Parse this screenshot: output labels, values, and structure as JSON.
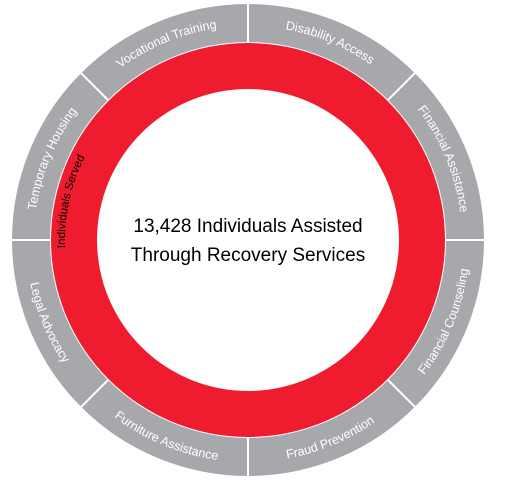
{
  "colors": {
    "outer_segment": "#a7a8ab",
    "segment_border": "#ffffff",
    "segment_text": "#ffffff",
    "ring": "#ee1c2e",
    "center": "#ffffff",
    "center_text": "#000000",
    "ring_text": "#000000"
  },
  "center": {
    "line1": "13,428 Individuals Assisted",
    "line2": "Through Recovery Services"
  },
  "ring": {
    "label": "Individuals Served"
  },
  "segments": [
    {
      "id": "disability-access",
      "label": "Disability Access"
    },
    {
      "id": "financial-assistance",
      "label": "Financial Assistance"
    },
    {
      "id": "financial-counseling",
      "label": "Financial Counseling"
    },
    {
      "id": "fraud-prevention",
      "label": "Fraud Prevention"
    },
    {
      "id": "furniture-assistance",
      "label": "Furniture Assistance"
    },
    {
      "id": "legal-advocacy",
      "label": "Legal Advocacy"
    },
    {
      "id": "temporary-housing",
      "label": "Temporary Housing"
    },
    {
      "id": "vocational-training",
      "label": "Vocational Training"
    }
  ]
}
